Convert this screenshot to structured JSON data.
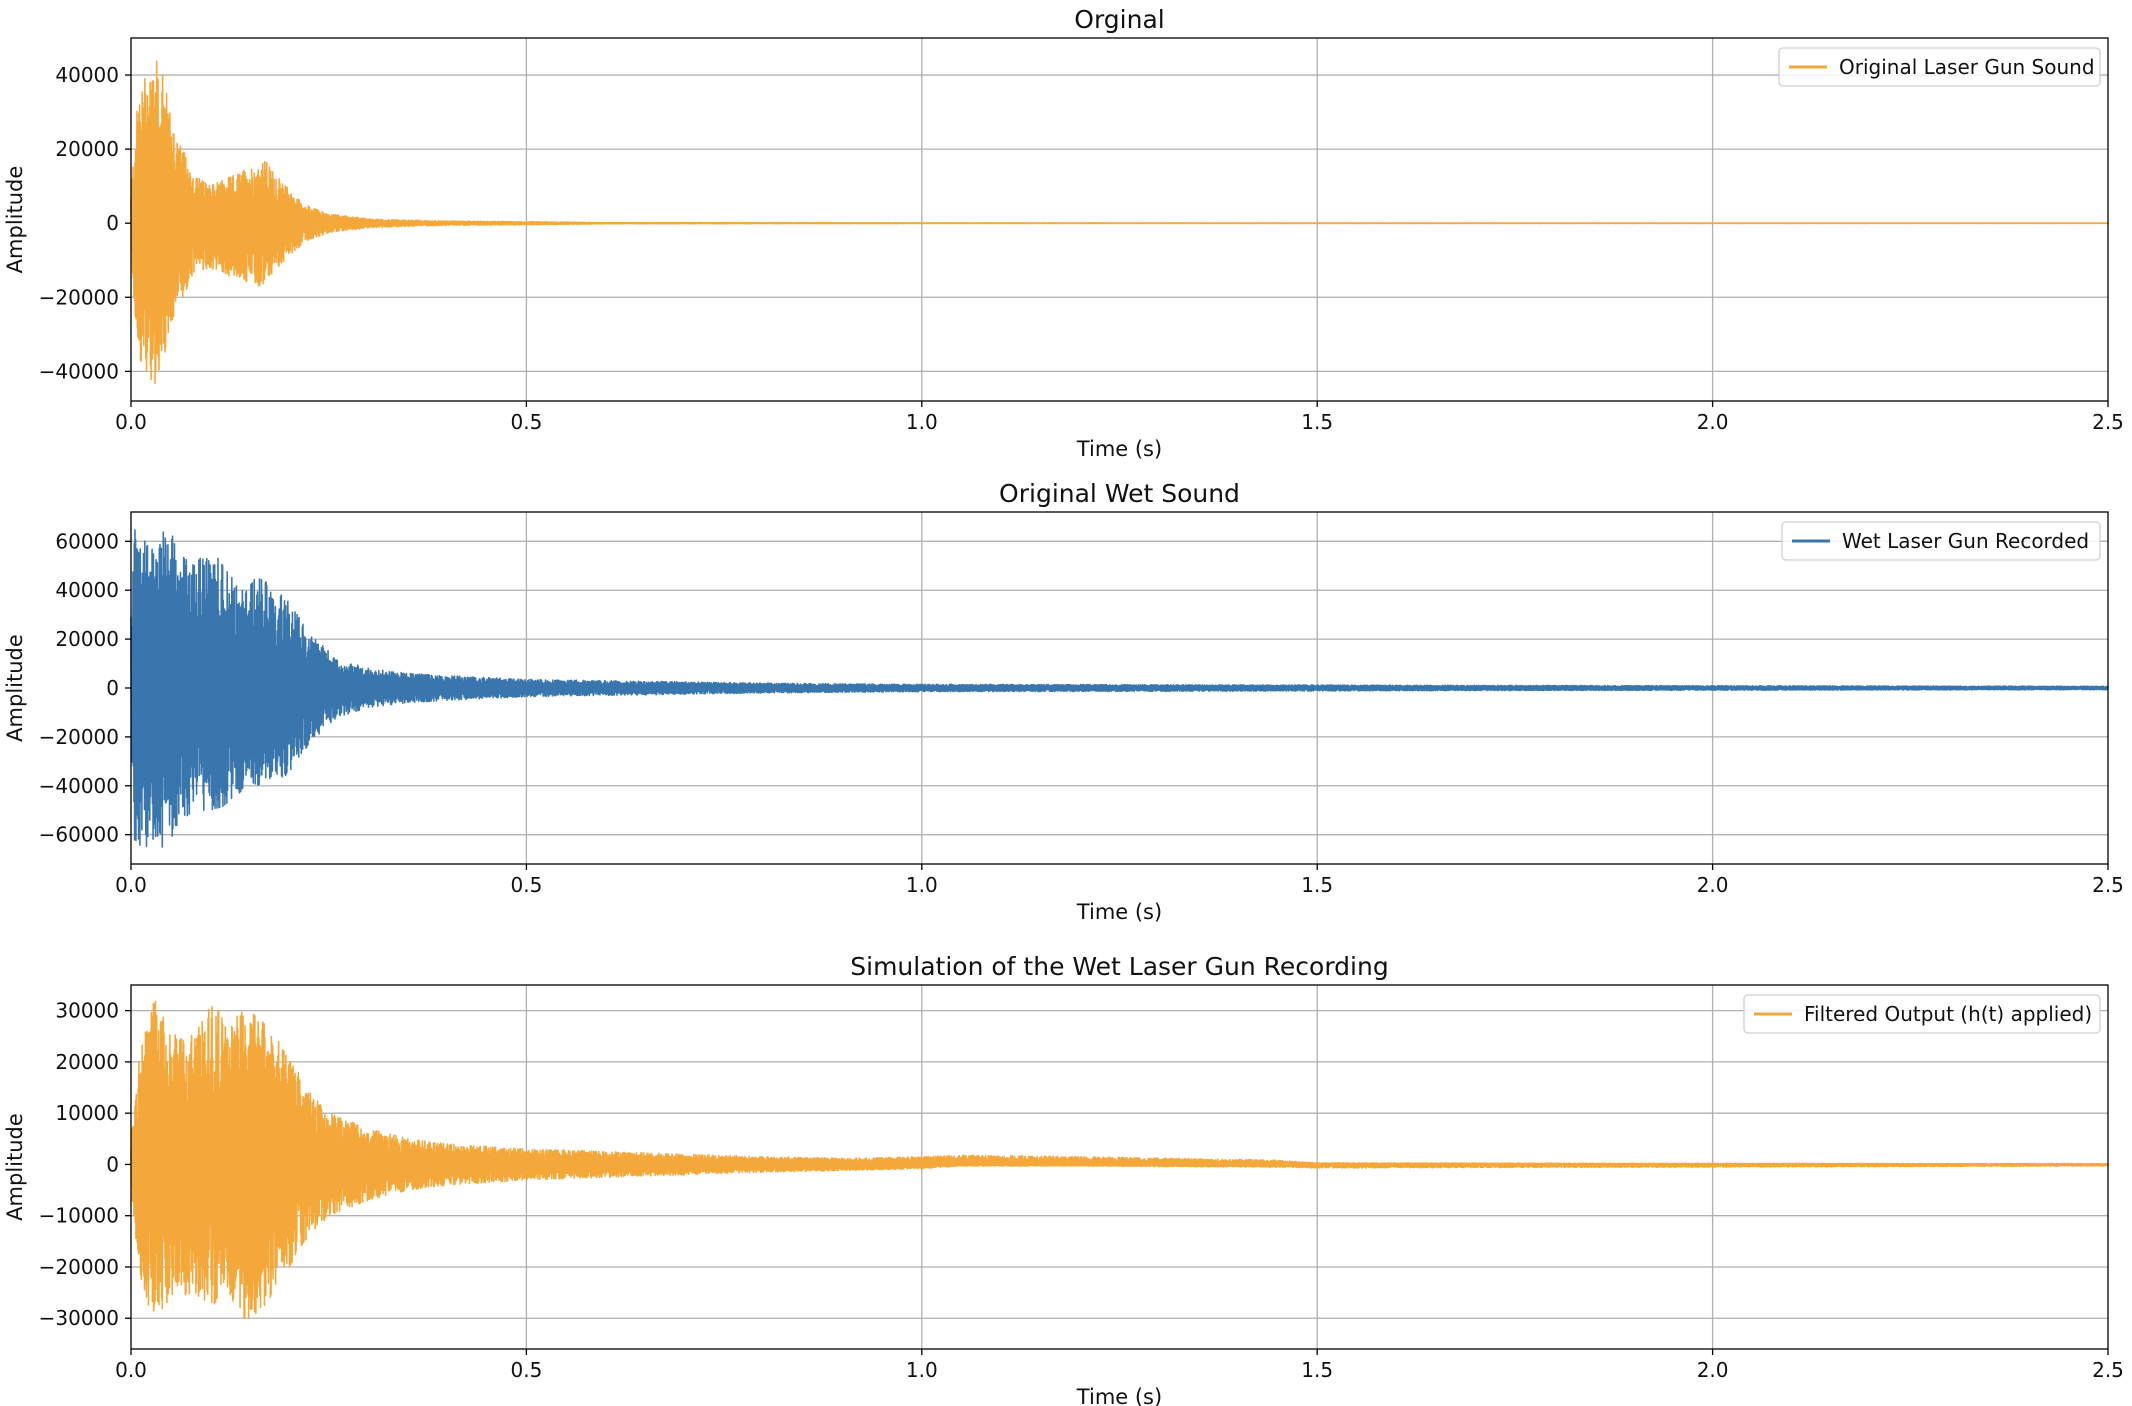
{
  "figure": {
    "background": "#ffffff",
    "grid_color": "#b0b0b0",
    "axis_color": "#000000"
  },
  "chart_data": [
    {
      "type": "line",
      "title": "Orginal",
      "xlabel": "Time (s)",
      "ylabel": "Amplitude",
      "xlim": [
        0,
        2.5
      ],
      "ylim": [
        -48000,
        50000
      ],
      "xticks": [
        0.0,
        0.5,
        1.0,
        1.5,
        2.0,
        2.5
      ],
      "xtick_labels": [
        "0.0",
        "0.5",
        "1.0",
        "1.5",
        "2.0",
        "2.5"
      ],
      "yticks": [
        40000,
        20000,
        0,
        -20000,
        -40000
      ],
      "ytick_labels": [
        "40000",
        "20000",
        "0",
        "−20000",
        "−40000"
      ],
      "grid": true,
      "legend_position": "top-right",
      "series": [
        {
          "name": "Original Laser Gun Sound",
          "color": "#f4a83a",
          "envelope": {
            "t": [
              0.0,
              0.005,
              0.01,
              0.02,
              0.03,
              0.04,
              0.05,
              0.06,
              0.07,
              0.08,
              0.1,
              0.12,
              0.14,
              0.16,
              0.17,
              0.18,
              0.2,
              0.22,
              0.25,
              0.3,
              0.35,
              0.4,
              0.5,
              0.55,
              0.6,
              1.0,
              1.5,
              2.0,
              2.5
            ],
            "max": [
              8000,
              25000,
              36000,
              42000,
              45000,
              40000,
              30000,
              22000,
              18000,
              13000,
              10000,
              12000,
              14000,
              16000,
              17000,
              14000,
              9000,
              5000,
              2500,
              1200,
              800,
              600,
              400,
              300,
              150,
              80,
              60,
              50,
              40
            ],
            "min": [
              -8000,
              -25000,
              -36000,
              -40000,
              -44000,
              -38000,
              -30000,
              -22000,
              -18000,
              -14000,
              -12000,
              -14000,
              -15000,
              -17000,
              -16000,
              -13000,
              -9000,
              -5000,
              -2500,
              -1200,
              -800,
              -600,
              -400,
              -300,
              -150,
              -80,
              -60,
              -50,
              -40
            ]
          }
        }
      ]
    },
    {
      "type": "line",
      "title": "Original Wet Sound",
      "xlabel": "Time (s)",
      "ylabel": "Amplitude",
      "xlim": [
        0,
        2.5
      ],
      "ylim": [
        -72000,
        72000
      ],
      "xticks": [
        0.0,
        0.5,
        1.0,
        1.5,
        2.0,
        2.5
      ],
      "xtick_labels": [
        "0.0",
        "0.5",
        "1.0",
        "1.5",
        "2.0",
        "2.5"
      ],
      "yticks": [
        60000,
        40000,
        20000,
        0,
        -20000,
        -40000,
        -60000
      ],
      "ytick_labels": [
        "60000",
        "40000",
        "20000",
        "0",
        "−20000",
        "−40000",
        "−60000"
      ],
      "grid": true,
      "legend_position": "top-right",
      "series": [
        {
          "name": "Wet Laser Gun Recorded",
          "color": "#3a76ae",
          "envelope": {
            "t": [
              0.0,
              0.005,
              0.01,
              0.05,
              0.06,
              0.08,
              0.1,
              0.12,
              0.14,
              0.16,
              0.18,
              0.2,
              0.22,
              0.24,
              0.26,
              0.3,
              0.35,
              0.4,
              0.5,
              0.6,
              0.7,
              0.8,
              1.0,
              1.5,
              2.0,
              2.5
            ],
            "max": [
              30000,
              65000,
              65000,
              65000,
              55000,
              50000,
              58000,
              48000,
              42000,
              45000,
              42000,
              35000,
              25000,
              18000,
              12000,
              8000,
              6000,
              5000,
              3500,
              3000,
              2500,
              2000,
              1500,
              1200,
              900,
              700
            ],
            "min": [
              -30000,
              -65000,
              -65000,
              -65000,
              -55000,
              -50000,
              -50000,
              -48000,
              -42000,
              -40000,
              -38000,
              -35000,
              -25000,
              -18000,
              -12000,
              -8000,
              -6000,
              -5000,
              -3500,
              -3000,
              -2500,
              -2000,
              -1500,
              -1200,
              -900,
              -700
            ]
          }
        }
      ]
    },
    {
      "type": "line",
      "title": "Simulation of the Wet Laser Gun Recording",
      "xlabel": "Time (s)",
      "ylabel": "Amplitude",
      "xlim": [
        0,
        2.5
      ],
      "ylim": [
        -36000,
        35000
      ],
      "xticks": [
        0.0,
        0.5,
        1.0,
        1.5,
        2.0,
        2.5
      ],
      "xtick_labels": [
        "0.0",
        "0.5",
        "1.0",
        "1.5",
        "2.0",
        "2.5"
      ],
      "yticks": [
        30000,
        20000,
        10000,
        0,
        -10000,
        -20000,
        -30000
      ],
      "ytick_labels": [
        "30000",
        "20000",
        "10000",
        "0",
        "−10000",
        "−20000",
        "−30000"
      ],
      "grid": true,
      "legend_position": "top-right",
      "series": [
        {
          "name": "Filtered Output (h(t) applied)",
          "color": "#f4a83a",
          "envelope": {
            "t": [
              0.0,
              0.01,
              0.02,
              0.03,
              0.05,
              0.08,
              0.1,
              0.12,
              0.15,
              0.18,
              0.2,
              0.22,
              0.25,
              0.3,
              0.35,
              0.4,
              0.5,
              0.6,
              0.7,
              0.8,
              0.9,
              1.0,
              1.05,
              1.2,
              1.4,
              1.45,
              1.5,
              2.0,
              2.5
            ],
            "max": [
              5000,
              20000,
              28000,
              32000,
              26000,
              25000,
              31000,
              29000,
              30000,
              26000,
              22000,
              15000,
              10000,
              7000,
              5000,
              4000,
              3000,
              2500,
              2000,
              1500,
              1200,
              1500,
              1800,
              1500,
              1000,
              800,
              300,
              200,
              150
            ],
            "min": [
              -5000,
              -22000,
              -28000,
              -30000,
              -26000,
              -25000,
              -28000,
              -25000,
              -32000,
              -25000,
              -20000,
              -15000,
              -10000,
              -7000,
              -5000,
              -4000,
              -3000,
              -2500,
              -2000,
              -1500,
              -1200,
              -800,
              -300,
              -300,
              -500,
              -500,
              -700,
              -500,
              -300
            ]
          }
        }
      ]
    }
  ]
}
